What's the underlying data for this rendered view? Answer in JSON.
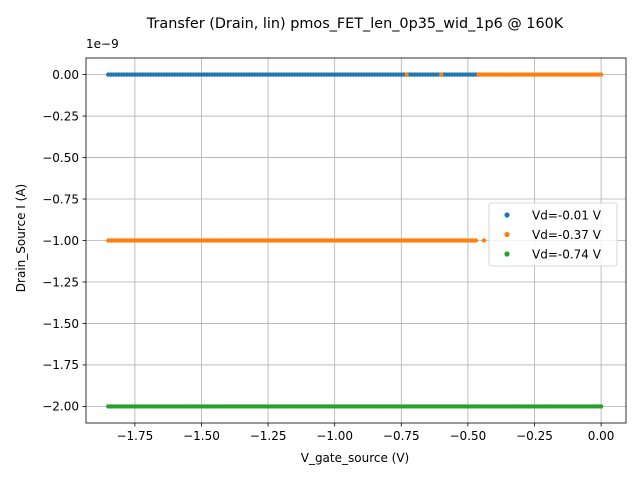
{
  "chart_data": {
    "type": "scatter",
    "title": "Transfer (Drain, lin) pmos_FET_len_0p35_wid_1p6 @ 160K",
    "xlabel": "V_gate_source (V)",
    "ylabel": "Drain_Source I (A)",
    "y_offset_label": "1e−9",
    "xlim": [
      -1.9335,
      0.0935
    ],
    "ylim": [
      -2.1,
      0.1
    ],
    "x_ticks": [
      -1.75,
      -1.5,
      -1.25,
      -1.0,
      -0.75,
      -0.5,
      -0.25,
      0.0
    ],
    "x_tick_labels": [
      "−1.75",
      "−1.50",
      "−1.25",
      "−1.00",
      "−0.75",
      "−0.50",
      "−0.25",
      "0.00"
    ],
    "y_ticks": [
      0.0,
      -0.25,
      -0.5,
      -0.75,
      -1.0,
      -1.25,
      -1.5,
      -1.75,
      -2.0
    ],
    "y_tick_labels": [
      "0.00",
      "−0.25",
      "−0.50",
      "−0.75",
      "−1.00",
      "−1.25",
      "−1.50",
      "−1.75",
      "−2.00"
    ],
    "grid": true,
    "legend_position": "right",
    "series": [
      {
        "name": "Vd=-0.01 V",
        "color": "#1f77b4",
        "segments": [
          {
            "x_start": -1.85,
            "x_end": -0.46,
            "step": 0.01,
            "y": 0.0
          }
        ]
      },
      {
        "name": "Vd=-0.37 V",
        "color": "#ff7f0e",
        "segments": [
          {
            "x_start": -1.85,
            "x_end": -0.47,
            "step": 0.01,
            "y": -1.0
          },
          {
            "x_start": -0.46,
            "x_end": 0.0,
            "step": 0.01,
            "y": 0.0
          }
        ],
        "extra_points": [
          {
            "x": -0.73,
            "y": 0.0
          },
          {
            "x": -0.6,
            "y": 0.0
          },
          {
            "x": -0.44,
            "y": -1.0
          }
        ]
      },
      {
        "name": "Vd=-0.74 V",
        "color": "#2ca02c",
        "segments": [
          {
            "x_start": -1.85,
            "x_end": 0.0,
            "step": 0.01,
            "y": -2.0
          }
        ]
      }
    ]
  }
}
